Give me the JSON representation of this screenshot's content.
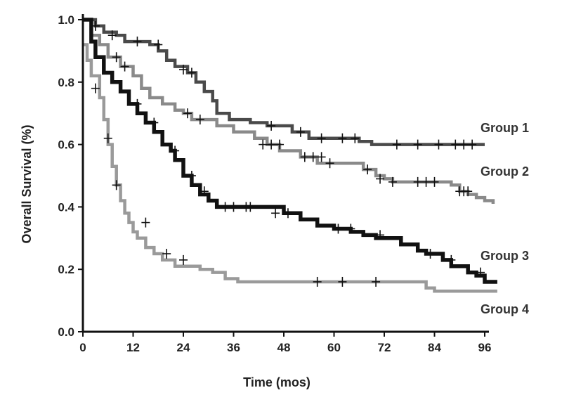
{
  "chart_data": {
    "type": "line",
    "xlabel": "Time (mos)",
    "ylabel": "Overall Survival (%)",
    "xlim": [
      0,
      96
    ],
    "ylim": [
      0,
      1.0
    ],
    "x_ticks": [
      "0",
      "12",
      "24",
      "36",
      "48",
      "60",
      "72",
      "84",
      "96"
    ],
    "y_ticks": [
      "0.0",
      "0.2",
      "0.4",
      "0.6",
      "0.8",
      "1.0"
    ],
    "grid": false,
    "legend": "none",
    "series": [
      {
        "name": "Group 1",
        "color": "#4a4a4a",
        "step": [
          [
            0,
            1.0
          ],
          [
            3,
            0.98
          ],
          [
            5,
            0.96
          ],
          [
            8,
            0.95
          ],
          [
            10,
            0.93
          ],
          [
            16,
            0.92
          ],
          [
            18,
            0.9
          ],
          [
            20,
            0.87
          ],
          [
            22,
            0.85
          ],
          [
            25,
            0.83
          ],
          [
            27,
            0.8
          ],
          [
            29,
            0.77
          ],
          [
            31,
            0.74
          ],
          [
            32,
            0.7
          ],
          [
            35,
            0.68
          ],
          [
            40,
            0.67
          ],
          [
            44,
            0.66
          ],
          [
            50,
            0.64
          ],
          [
            54,
            0.62
          ],
          [
            66,
            0.61
          ],
          [
            69,
            0.6
          ],
          [
            96,
            0.6
          ]
        ],
        "censored": [
          [
            3,
            0.98
          ],
          [
            7,
            0.95
          ],
          [
            13,
            0.93
          ],
          [
            18,
            0.92
          ],
          [
            24,
            0.84
          ],
          [
            26,
            0.83
          ],
          [
            45,
            0.66
          ],
          [
            52,
            0.64
          ],
          [
            57,
            0.62
          ],
          [
            62,
            0.62
          ],
          [
            65,
            0.62
          ],
          [
            75,
            0.6
          ],
          [
            80,
            0.6
          ],
          [
            85,
            0.6
          ],
          [
            89,
            0.6
          ],
          [
            91,
            0.6
          ],
          [
            93,
            0.6
          ]
        ]
      },
      {
        "name": "Group 2",
        "color": "#8a8a8a",
        "step": [
          [
            0,
            1.0
          ],
          [
            2,
            0.95
          ],
          [
            4,
            0.92
          ],
          [
            6,
            0.88
          ],
          [
            9,
            0.85
          ],
          [
            12,
            0.82
          ],
          [
            14,
            0.78
          ],
          [
            16,
            0.75
          ],
          [
            19,
            0.73
          ],
          [
            22,
            0.71
          ],
          [
            24,
            0.7
          ],
          [
            26,
            0.68
          ],
          [
            32,
            0.66
          ],
          [
            36,
            0.64
          ],
          [
            41,
            0.62
          ],
          [
            44,
            0.6
          ],
          [
            47,
            0.58
          ],
          [
            52,
            0.56
          ],
          [
            56,
            0.54
          ],
          [
            67,
            0.52
          ],
          [
            70,
            0.5
          ],
          [
            72,
            0.49
          ],
          [
            74,
            0.48
          ],
          [
            88,
            0.47
          ],
          [
            90,
            0.45
          ],
          [
            92,
            0.44
          ],
          [
            94,
            0.43
          ],
          [
            96,
            0.42
          ],
          [
            98,
            0.41
          ]
        ],
        "censored": [
          [
            8,
            0.88
          ],
          [
            10,
            0.85
          ],
          [
            25,
            0.7
          ],
          [
            28,
            0.68
          ],
          [
            43,
            0.6
          ],
          [
            45,
            0.6
          ],
          [
            47,
            0.6
          ],
          [
            53,
            0.56
          ],
          [
            55,
            0.56
          ],
          [
            57,
            0.56
          ],
          [
            59,
            0.54
          ],
          [
            68,
            0.52
          ],
          [
            71,
            0.49
          ],
          [
            74,
            0.48
          ],
          [
            80,
            0.48
          ],
          [
            82,
            0.48
          ],
          [
            84,
            0.48
          ],
          [
            90,
            0.45
          ],
          [
            91,
            0.45
          ],
          [
            92,
            0.45
          ]
        ]
      },
      {
        "name": "Group 3",
        "color": "#111111",
        "step": [
          [
            0,
            1.0
          ],
          [
            2,
            0.93
          ],
          [
            3,
            0.88
          ],
          [
            5,
            0.83
          ],
          [
            7,
            0.8
          ],
          [
            9,
            0.77
          ],
          [
            11,
            0.73
          ],
          [
            13,
            0.7
          ],
          [
            15,
            0.67
          ],
          [
            17,
            0.64
          ],
          [
            19,
            0.6
          ],
          [
            21,
            0.58
          ],
          [
            22,
            0.55
          ],
          [
            24,
            0.5
          ],
          [
            26,
            0.47
          ],
          [
            28,
            0.44
          ],
          [
            30,
            0.42
          ],
          [
            32,
            0.4
          ],
          [
            48,
            0.38
          ],
          [
            52,
            0.36
          ],
          [
            56,
            0.34
          ],
          [
            60,
            0.33
          ],
          [
            64,
            0.32
          ],
          [
            67,
            0.31
          ],
          [
            70,
            0.3
          ],
          [
            76,
            0.28
          ],
          [
            80,
            0.26
          ],
          [
            82,
            0.25
          ],
          [
            86,
            0.23
          ],
          [
            88,
            0.21
          ],
          [
            92,
            0.19
          ],
          [
            94,
            0.18
          ],
          [
            96,
            0.16
          ],
          [
            99,
            0.16
          ]
        ],
        "censored": [
          [
            13,
            0.73
          ],
          [
            17,
            0.67
          ],
          [
            22,
            0.58
          ],
          [
            26,
            0.5
          ],
          [
            29,
            0.45
          ],
          [
            34,
            0.4
          ],
          [
            36,
            0.4
          ],
          [
            39,
            0.4
          ],
          [
            40,
            0.4
          ],
          [
            46,
            0.38
          ],
          [
            49,
            0.38
          ],
          [
            61,
            0.33
          ],
          [
            64,
            0.33
          ],
          [
            71,
            0.31
          ],
          [
            83,
            0.25
          ],
          [
            88,
            0.23
          ],
          [
            95,
            0.19
          ]
        ]
      },
      {
        "name": "Group 4",
        "color": "#9a9a9a",
        "step": [
          [
            0,
            0.92
          ],
          [
            1,
            0.87
          ],
          [
            2,
            0.82
          ],
          [
            4,
            0.75
          ],
          [
            5,
            0.68
          ],
          [
            6,
            0.6
          ],
          [
            7,
            0.53
          ],
          [
            8,
            0.47
          ],
          [
            9,
            0.42
          ],
          [
            10,
            0.38
          ],
          [
            11,
            0.35
          ],
          [
            12,
            0.32
          ],
          [
            13,
            0.3
          ],
          [
            15,
            0.27
          ],
          [
            17,
            0.25
          ],
          [
            19,
            0.23
          ],
          [
            22,
            0.21
          ],
          [
            28,
            0.2
          ],
          [
            31,
            0.19
          ],
          [
            34,
            0.17
          ],
          [
            37,
            0.16
          ],
          [
            82,
            0.14
          ],
          [
            84,
            0.13
          ],
          [
            96,
            0.13
          ],
          [
            99,
            0.13
          ]
        ],
        "censored": [
          [
            3,
            0.78
          ],
          [
            6,
            0.62
          ],
          [
            8,
            0.47
          ],
          [
            15,
            0.35
          ],
          [
            20,
            0.25
          ],
          [
            24,
            0.23
          ],
          [
            56,
            0.16
          ],
          [
            62,
            0.16
          ],
          [
            70,
            0.16
          ]
        ]
      }
    ]
  }
}
